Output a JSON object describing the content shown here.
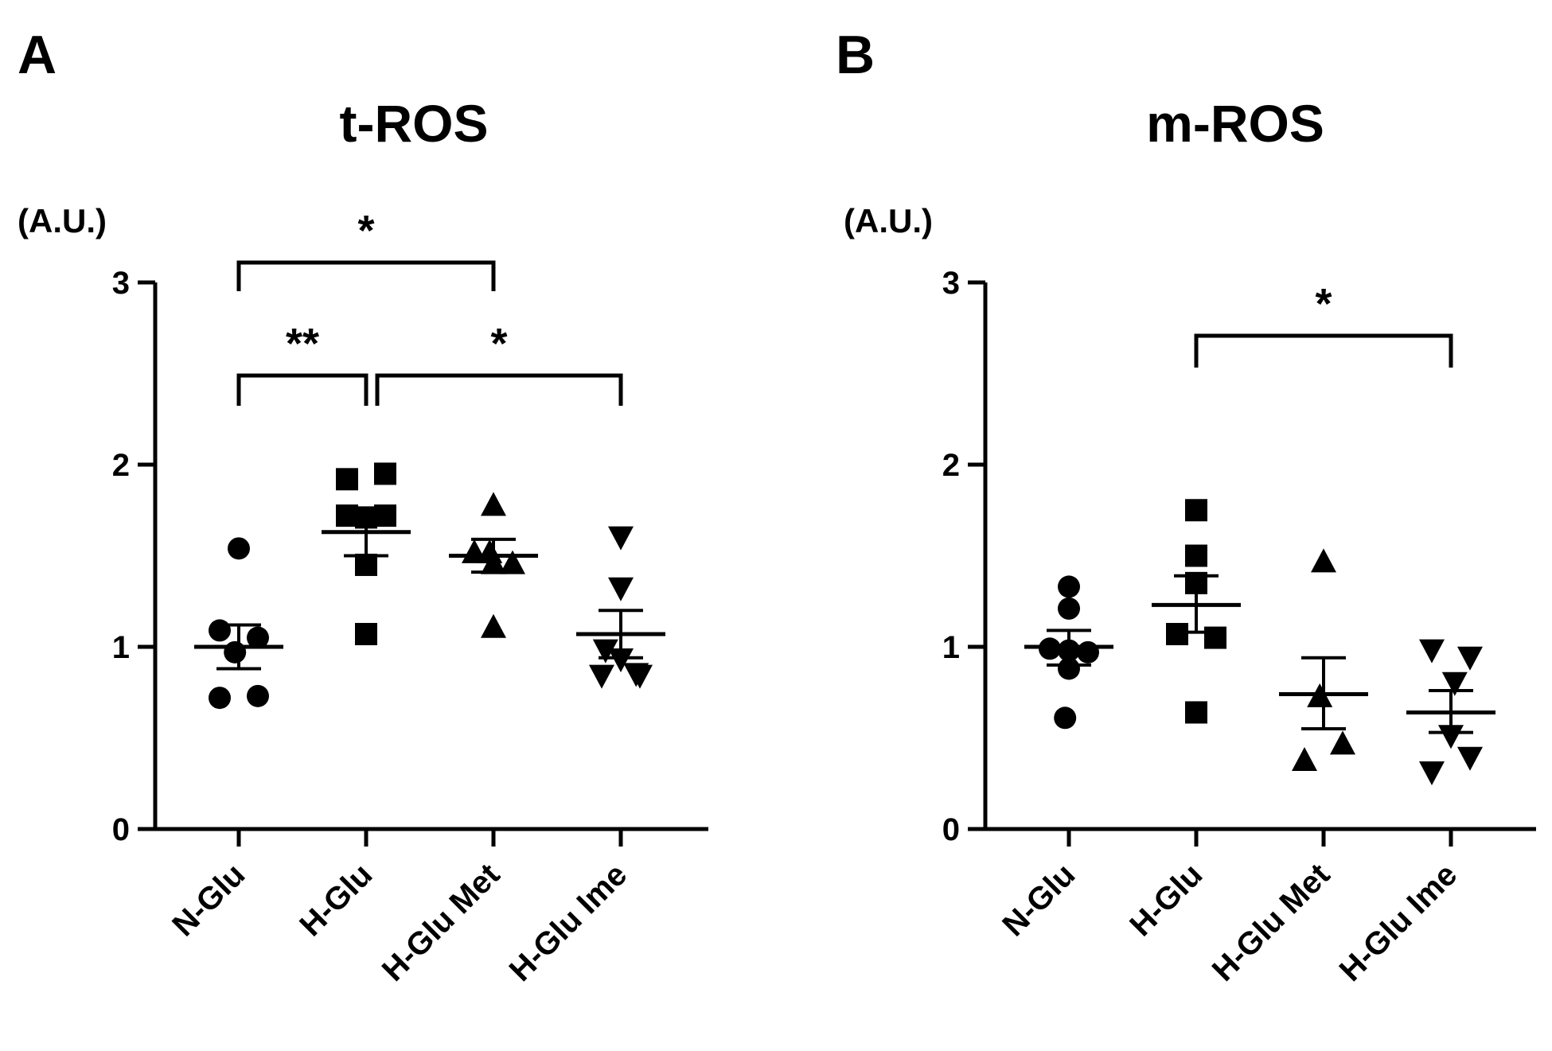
{
  "panels": [
    {
      "letter": "A",
      "chart_data": {
        "type": "scatter",
        "title": "t-ROS",
        "ylabel": "(A.U.)",
        "xlabel": "",
        "ylim": [
          0,
          3
        ],
        "yticks": [
          "0",
          "1",
          "2",
          "3"
        ],
        "categories": [
          "N-Glu",
          "H-Glu",
          "H-Glu Met",
          "H-Glu Ime"
        ],
        "marker_shapes": [
          "circle",
          "square",
          "triangle-up",
          "triangle-down"
        ],
        "series": [
          {
            "name": "N-Glu",
            "points": [
              [
                -0.0,
                1.54
              ],
              [
                -0.25,
                1.09
              ],
              [
                0.25,
                1.05
              ],
              [
                -0.05,
                0.97
              ],
              [
                -0.25,
                0.72
              ],
              [
                0.25,
                0.73
              ]
            ],
            "mean": 1.0,
            "sem_low": 0.88,
            "sem_high": 1.12
          },
          {
            "name": "H-Glu",
            "points": [
              [
                -0.25,
                1.92
              ],
              [
                0.25,
                1.95
              ],
              [
                -0.25,
                1.72
              ],
              [
                0.0,
                1.71
              ],
              [
                0.25,
                1.72
              ],
              [
                0.0,
                1.45
              ],
              [
                0.0,
                1.07
              ]
            ],
            "mean": 1.63,
            "sem_low": 1.5,
            "sem_high": 1.76
          },
          {
            "name": "H-Glu Met",
            "points": [
              [
                0.0,
                1.78
              ],
              [
                -0.25,
                1.52
              ],
              [
                -0.05,
                1.52
              ],
              [
                0.25,
                1.46
              ],
              [
                0.0,
                1.46
              ],
              [
                0.0,
                1.11
              ]
            ],
            "mean": 1.5,
            "sem_low": 1.41,
            "sem_high": 1.59
          },
          {
            "name": "H-Glu Ime",
            "points": [
              [
                0.0,
                1.6
              ],
              [
                0.0,
                1.32
              ],
              [
                -0.2,
                0.98
              ],
              [
                0.0,
                0.93
              ],
              [
                0.2,
                0.85
              ],
              [
                -0.25,
                0.84
              ],
              [
                0.25,
                0.84
              ]
            ],
            "mean": 1.07,
            "sem_low": 0.94,
            "sem_high": 1.2
          }
        ],
        "significance": [
          {
            "from": 0,
            "to": 2,
            "label": "*",
            "level": 0
          },
          {
            "from": 0,
            "to": 1,
            "label": "**",
            "level": 1
          },
          {
            "from": 1,
            "to": 3,
            "label": "*",
            "level": 1
          }
        ]
      }
    },
    {
      "letter": "B",
      "chart_data": {
        "type": "scatter",
        "title": "m-ROS",
        "ylabel": "(A.U.)",
        "xlabel": "",
        "ylim": [
          0,
          3
        ],
        "yticks": [
          "0",
          "1",
          "2",
          "3"
        ],
        "categories": [
          "N-Glu",
          "H-Glu",
          "H-Glu Met",
          "H-Glu Ime"
        ],
        "marker_shapes": [
          "circle",
          "square",
          "triangle-up",
          "triangle-down"
        ],
        "series": [
          {
            "name": "N-Glu",
            "points": [
              [
                0.0,
                1.33
              ],
              [
                0.0,
                1.21
              ],
              [
                -0.25,
                0.99
              ],
              [
                0.0,
                0.98
              ],
              [
                0.25,
                0.97
              ],
              [
                0.0,
                0.88
              ],
              [
                -0.05,
                0.61
              ]
            ],
            "mean": 1.0,
            "sem_low": 0.9,
            "sem_high": 1.09
          },
          {
            "name": "H-Glu",
            "points": [
              [
                0.0,
                1.75
              ],
              [
                0.0,
                1.5
              ],
              [
                0.0,
                1.35
              ],
              [
                -0.25,
                1.07
              ],
              [
                0.25,
                1.05
              ],
              [
                0.0,
                0.64
              ]
            ],
            "mean": 1.23,
            "sem_low": 1.08,
            "sem_high": 1.39
          },
          {
            "name": "H-Glu Met",
            "points": [
              [
                0.0,
                1.47
              ],
              [
                -0.05,
                0.73
              ],
              [
                -0.25,
                0.38
              ],
              [
                0.25,
                0.47
              ]
            ],
            "mean": 0.74,
            "sem_low": 0.55,
            "sem_high": 0.94
          },
          {
            "name": "H-Glu Ime",
            "points": [
              [
                -0.25,
                0.98
              ],
              [
                0.05,
                0.8
              ],
              [
                0.25,
                0.94
              ],
              [
                0.0,
                0.51
              ],
              [
                -0.25,
                0.31
              ],
              [
                0.25,
                0.39
              ]
            ],
            "mean": 0.64,
            "sem_low": 0.53,
            "sem_high": 0.76
          }
        ],
        "significance": [
          {
            "from": 1,
            "to": 3,
            "label": "*",
            "level": 0
          }
        ]
      }
    }
  ]
}
